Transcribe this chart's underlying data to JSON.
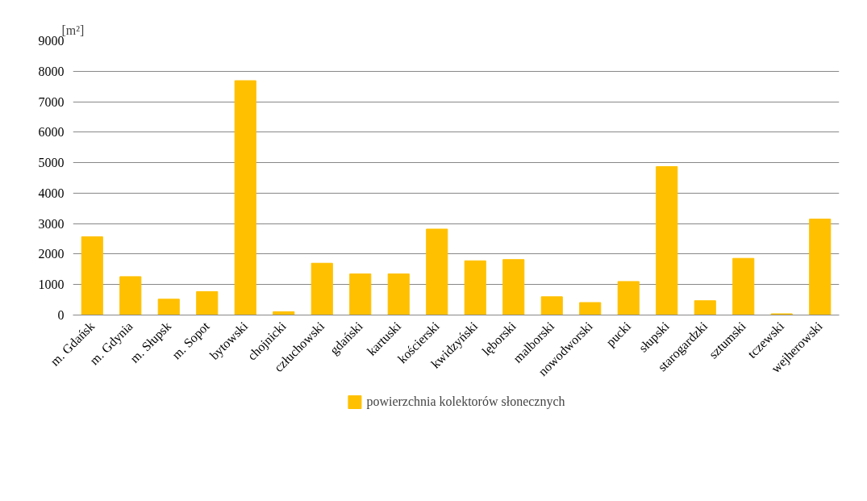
{
  "chart_data": {
    "type": "bar",
    "ylabel": "[m²]",
    "categories": [
      "m. Gdańsk",
      "m. Gdynia",
      "m. Słupsk",
      "m. Sopot",
      "bytowski",
      "chojnicki",
      "człuchowski",
      "gdański",
      "kartuski",
      "kościerski",
      "kwidzyński",
      "lęborski",
      "malborski",
      "nowodworski",
      "pucki",
      "słupski",
      "starogardzki",
      "sztumski",
      "tczewski",
      "wejherowski"
    ],
    "series": [
      {
        "name": "powierzchnia kolektorów słonecznych",
        "color": "#ffc000",
        "values": [
          2570,
          1260,
          520,
          770,
          7690,
          110,
          1700,
          1350,
          1350,
          2820,
          1780,
          1820,
          600,
          410,
          1100,
          4870,
          470,
          1860,
          40,
          3150
        ]
      }
    ],
    "ylim": [
      0,
      9000
    ],
    "yticks": [
      0,
      1000,
      2000,
      3000,
      4000,
      5000,
      6000,
      7000,
      8000,
      9000
    ],
    "grid": "y",
    "legend": "bottom"
  }
}
